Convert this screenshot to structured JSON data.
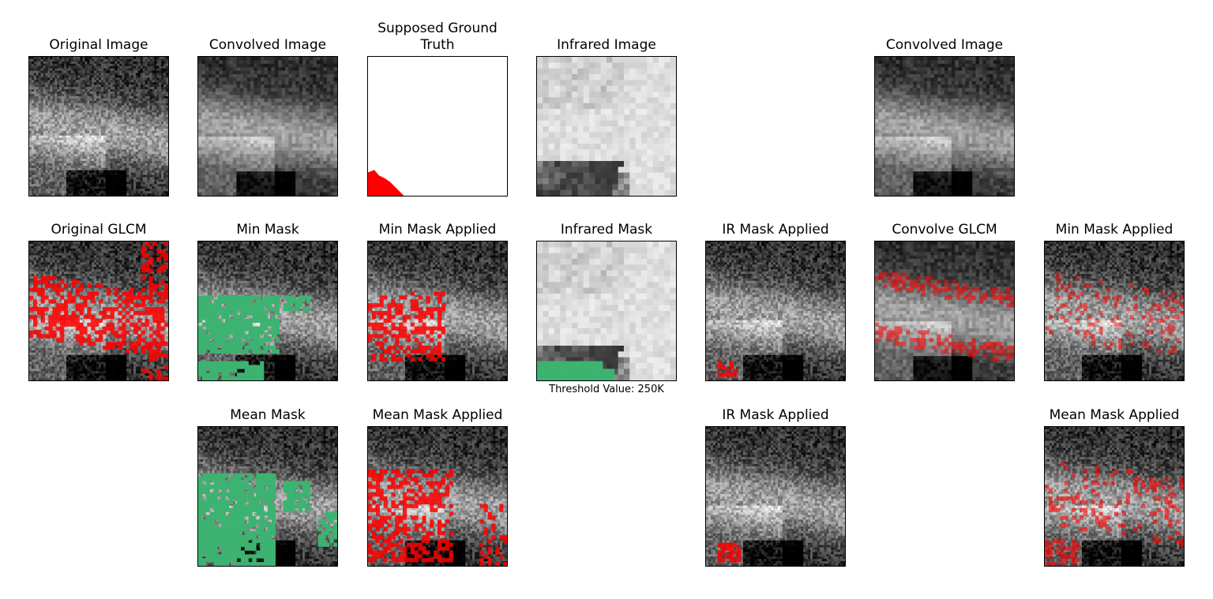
{
  "figure": {
    "panels": [
      {
        "id": "r0c0",
        "title": "Original Image",
        "kind": "vis"
      },
      {
        "id": "r0c1",
        "title": "Convolved Image",
        "kind": "blur"
      },
      {
        "id": "r0c2",
        "title": "Supposed Ground\nTruth",
        "kind": "truth"
      },
      {
        "id": "r0c3",
        "title": "Infrared Image",
        "kind": "ir"
      },
      {
        "id": "r0c5",
        "title": "Convolved Image",
        "kind": "blur"
      },
      {
        "id": "r1c0",
        "title": "Original GLCM",
        "kind": "vis",
        "overlay": "red-heavy"
      },
      {
        "id": "r1c1",
        "title": "Min Mask",
        "kind": "vis",
        "overlay": "green-min"
      },
      {
        "id": "r1c2",
        "title": "Min Mask Applied",
        "kind": "vis",
        "overlay": "red-medium"
      },
      {
        "id": "r1c3",
        "title": "Infrared Mask",
        "kind": "ir",
        "overlay": "green-ir",
        "note": "Threshold Value: 250K"
      },
      {
        "id": "r1c4",
        "title": "IR Mask Applied",
        "kind": "vis",
        "overlay": "red-small"
      },
      {
        "id": "r1c5",
        "title": "Convolve GLCM",
        "kind": "blur",
        "overlay": "red-edge"
      },
      {
        "id": "r1c6",
        "title": "Min Mask Applied",
        "kind": "vis",
        "overlay": "red-light"
      },
      {
        "id": "r2c1",
        "title": "Mean Mask",
        "kind": "vis",
        "overlay": "green-mean"
      },
      {
        "id": "r2c2",
        "title": "Mean Mask Applied",
        "kind": "vis",
        "overlay": "red-medium2"
      },
      {
        "id": "r2c4",
        "title": "IR Mask Applied",
        "kind": "vis",
        "overlay": "red-small2"
      },
      {
        "id": "r2c6",
        "title": "Mean Mask Applied",
        "kind": "vis",
        "overlay": "red-light2"
      }
    ],
    "colors": {
      "mask_green": "#3cb371",
      "overlay_red": "#ff0000",
      "frame": "#000000"
    }
  }
}
